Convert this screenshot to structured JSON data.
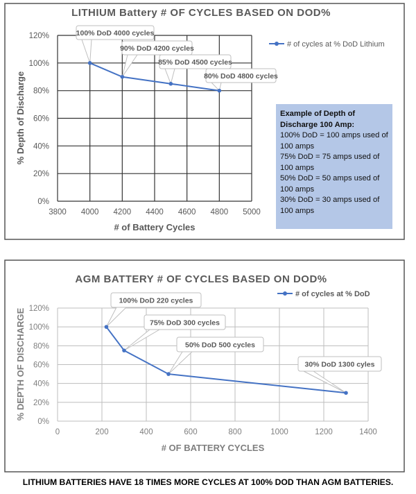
{
  "chart_data": [
    {
      "type": "line",
      "title": "LITHIUM Battery # OF CYCLES BASED ON DOD%",
      "xlabel": "# of Battery Cycles",
      "ylabel": "% Depth of Discharge",
      "xlim": [
        3800,
        5000
      ],
      "ylim": [
        0,
        120
      ],
      "x_ticks": [
        "3800",
        "4000",
        "4200",
        "4400",
        "4600",
        "4800",
        "5000"
      ],
      "y_ticks": [
        "0%",
        "20%",
        "40%",
        "60%",
        "80%",
        "100%",
        "120%"
      ],
      "grid": true,
      "legend_position": "right",
      "series": [
        {
          "name": "# of cycles at % DoD Lithium",
          "color": "#4472c4",
          "x": [
            4000,
            4200,
            4500,
            4800
          ],
          "y": [
            100,
            90,
            85,
            80
          ],
          "data_labels": [
            "100% DoD 4000 cycles",
            "90% DoD 4200 cycles",
            "85% DoD 4500 cycles",
            "80% DoD 4800 cycles"
          ]
        }
      ],
      "annotation": {
        "heading": "Example of Depth of Discharge 100 Amp:",
        "lines": [
          "100% DoD = 100 amps used of 100 amps",
          "75% DoD = 75 amps used of 100 amps",
          "50% DoD = 50 amps used of 100 amps",
          "30% DoD = 30 amps used of 100 amps"
        ],
        "background": "#b4c7e7"
      }
    },
    {
      "type": "line",
      "title": "AGM BATTERY # OF CYCLES BASED ON DOD%",
      "xlabel": "# OF BATTERY CYCLES",
      "ylabel": "% DEPTH OF DISCHARGE",
      "xlim": [
        0,
        1400
      ],
      "ylim": [
        0,
        120
      ],
      "x_ticks": [
        "0",
        "200",
        "400",
        "600",
        "800",
        "1000",
        "1200",
        "1400"
      ],
      "y_ticks": [
        "0%",
        "20%",
        "40%",
        "60%",
        "80%",
        "100%",
        "120%"
      ],
      "grid": true,
      "legend_position": "top-right",
      "series": [
        {
          "name": "# of cycles at % DoD",
          "color": "#4472c4",
          "x": [
            220,
            300,
            500,
            1300
          ],
          "y": [
            100,
            75,
            50,
            30
          ],
          "data_labels": [
            "100% DoD 220 cycles",
            "75% DoD 300 cycles",
            "50% DoD 500 cycles",
            "30% DoD 1300 cyles"
          ]
        }
      ]
    }
  ],
  "footer": "LITHIUM BATTERIES HAVE 18 TIMES MORE CYCLES AT 100% DOD THAN AGM BATTERIES."
}
